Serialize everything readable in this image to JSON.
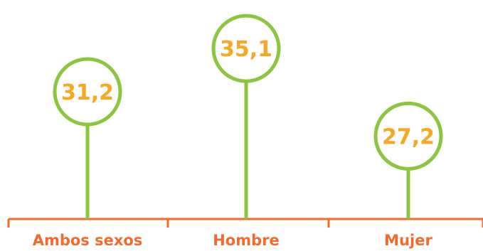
{
  "chart_data": {
    "type": "lollipop",
    "categories": [
      "Ambos sexos",
      "Hombre",
      "Mujer"
    ],
    "values": [
      31.2,
      35.1,
      27.2
    ],
    "value_labels": [
      "31,2",
      "35,1",
      "27,2"
    ],
    "colors": {
      "stem": "#8cc63f",
      "circle_border": "#8cc63f",
      "value_text": "#f7a823",
      "axis": "#f26a2e",
      "category_text": "#f26a2e"
    }
  }
}
